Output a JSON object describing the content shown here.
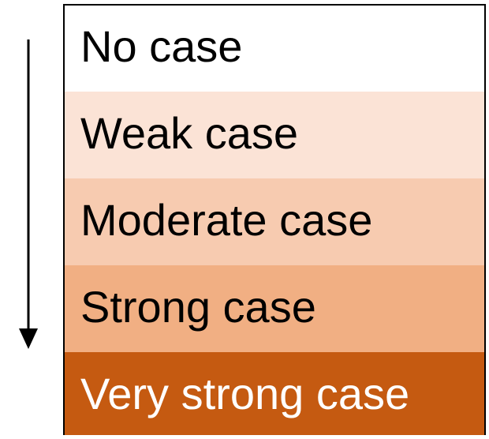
{
  "levels": [
    {
      "label": "No case",
      "color": "#ffffff",
      "text_color": "#000000"
    },
    {
      "label": "Weak case",
      "color": "#fbe3d6",
      "text_color": "#000000"
    },
    {
      "label": "Moderate case",
      "color": "#f7cbb0",
      "text_color": "#000000"
    },
    {
      "label": "Strong case",
      "color": "#f1af83",
      "text_color": "#000000"
    },
    {
      "label": "Very strong case",
      "color": "#c55a11",
      "text_color": "#ffffff"
    }
  ]
}
